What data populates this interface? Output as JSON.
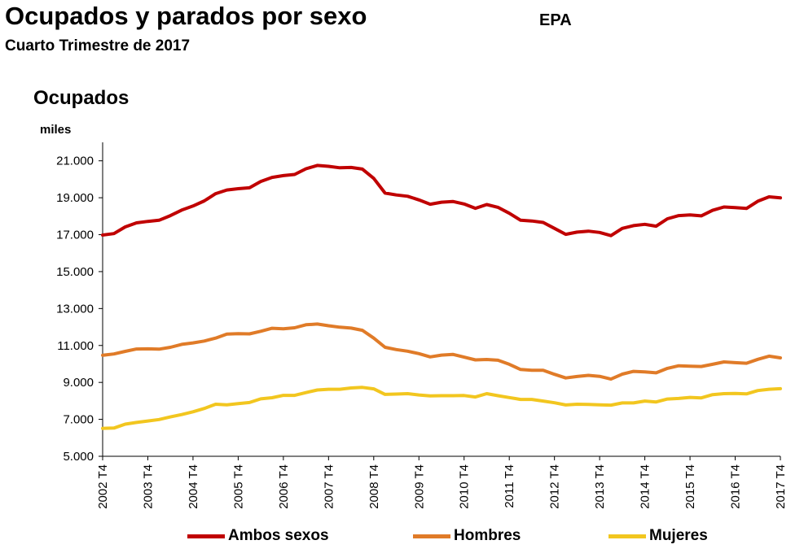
{
  "header": {
    "title": "Ocupados y parados por sexo",
    "subtitle": "Cuarto Trimestre de 2017",
    "source": "EPA",
    "section": "Ocupados",
    "unit": "miles"
  },
  "chart_data": {
    "type": "line",
    "title": "Ocupados",
    "ylabel": "miles",
    "ylim": [
      5000,
      22000
    ],
    "yticks": [
      5000,
      7000,
      9000,
      11000,
      13000,
      15000,
      17000,
      19000,
      21000
    ],
    "ytick_labels": [
      "5.000",
      "7.000",
      "9.000",
      "11.000",
      "13.000",
      "15.000",
      "17.000",
      "19.000",
      "21.000"
    ],
    "xtick_labels": [
      "2002 T4",
      "2003 T4",
      "2004 T4",
      "2005 T4",
      "2006 T4",
      "2007 T4",
      "2008 T4",
      "2009 T4",
      "2010 T4",
      "2011 T4",
      "2012 T4",
      "2013 T4",
      "2014 T4",
      "2015 T4",
      "2016 T4",
      "2017 T4"
    ],
    "x_start": "2002 T4",
    "x_end": "2017 T4",
    "frequency": "quarterly",
    "grid": false,
    "legend_position": "bottom",
    "series": [
      {
        "name": "Ambos sexos",
        "color": "#c00000",
        "values": [
          16980,
          17060,
          17420,
          17640,
          17720,
          17780,
          18030,
          18330,
          18550,
          18830,
          19220,
          19420,
          19490,
          19540,
          19880,
          20100,
          20200,
          20260,
          20570,
          20750,
          20700,
          20620,
          20640,
          20550,
          20050,
          19250,
          19150,
          19080,
          18880,
          18650,
          18760,
          18800,
          18660,
          18430,
          18630,
          18480,
          18160,
          17780,
          17740,
          17660,
          17340,
          17020,
          17140,
          17190,
          17120,
          16950,
          17340,
          17490,
          17560,
          17460,
          17860,
          18030,
          18070,
          18020,
          18320,
          18500,
          18470,
          18420,
          18810,
          19050,
          18990
        ]
      },
      {
        "name": "Hombres",
        "color": "#e07b28",
        "values": [
          10470,
          10540,
          10680,
          10810,
          10820,
          10800,
          10900,
          11060,
          11140,
          11240,
          11400,
          11620,
          11640,
          11630,
          11770,
          11930,
          11900,
          11960,
          12120,
          12160,
          12070,
          11990,
          11940,
          11820,
          11400,
          10900,
          10780,
          10690,
          10560,
          10380,
          10480,
          10520,
          10370,
          10220,
          10240,
          10200,
          9980,
          9700,
          9660,
          9660,
          9440,
          9240,
          9320,
          9380,
          9330,
          9180,
          9450,
          9600,
          9570,
          9520,
          9760,
          9900,
          9880,
          9860,
          9980,
          10110,
          10070,
          10040,
          10250,
          10420,
          10330
        ]
      },
      {
        "name": "Mujeres",
        "color": "#f2c61f",
        "values": [
          6510,
          6530,
          6740,
          6830,
          6910,
          6990,
          7130,
          7260,
          7410,
          7590,
          7820,
          7790,
          7850,
          7910,
          8110,
          8170,
          8300,
          8300,
          8450,
          8590,
          8630,
          8630,
          8700,
          8730,
          8650,
          8350,
          8370,
          8390,
          8320,
          8270,
          8280,
          8280,
          8290,
          8210,
          8390,
          8280,
          8180,
          8080,
          8080,
          7990,
          7900,
          7780,
          7820,
          7810,
          7790,
          7770,
          7890,
          7890,
          7990,
          7940,
          8100,
          8130,
          8190,
          8160,
          8340,
          8390,
          8400,
          8380,
          8560,
          8630,
          8660
        ]
      }
    ]
  }
}
